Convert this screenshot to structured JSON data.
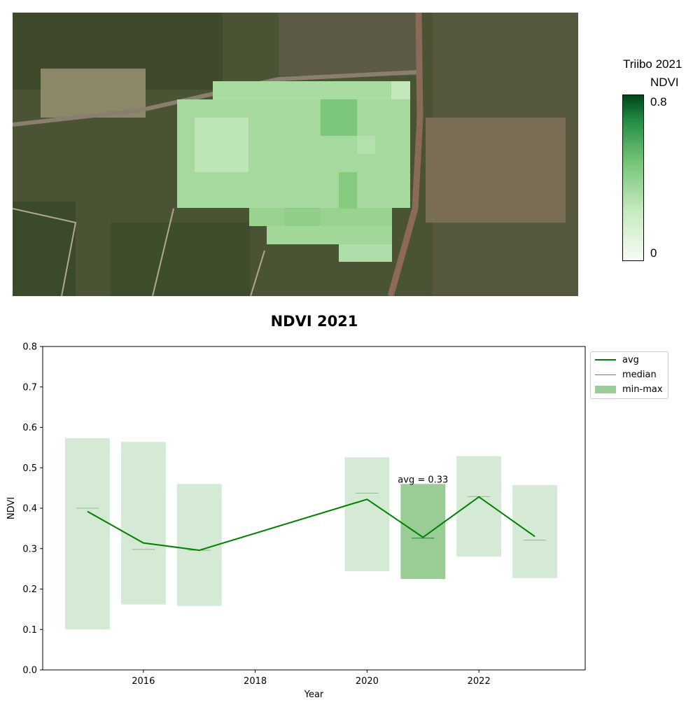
{
  "map": {
    "colorbar_title": "Triibo 2021",
    "colorbar_label": "NDVI",
    "colorbar_max": "0.8",
    "colorbar_min": "0"
  },
  "chart_data": {
    "type": "bar",
    "title": "NDVI 2021",
    "xlabel": "Year",
    "ylabel": "NDVI",
    "xlim": [
      2014.2,
      2023.9
    ],
    "ylim": [
      0.0,
      0.8
    ],
    "xticks": [
      2016,
      2018,
      2020,
      2022
    ],
    "yticks": [
      0.0,
      0.1,
      0.2,
      0.3,
      0.4,
      0.5,
      0.6,
      0.7,
      0.8
    ],
    "years": [
      2015,
      2016,
      2017,
      2020,
      2021,
      2022,
      2023
    ],
    "series": [
      {
        "name": "avg",
        "type": "line",
        "color": "#008000",
        "values": [
          0.392,
          0.314,
          0.296,
          0.422,
          0.328,
          0.428,
          0.33
        ]
      },
      {
        "name": "median",
        "type": "tick",
        "color": "#008000",
        "values": [
          0.4,
          0.298,
          0.296,
          0.437,
          0.326,
          0.429,
          0.321
        ]
      },
      {
        "name": "min-max",
        "type": "range",
        "color": "#9acd95",
        "min": [
          0.1,
          0.162,
          0.158,
          0.244,
          0.225,
          0.28,
          0.227
        ],
        "max": [
          0.573,
          0.564,
          0.46,
          0.526,
          0.46,
          0.529,
          0.457
        ],
        "highlight": 2021
      }
    ],
    "annotation": {
      "text": "avg = 0.33",
      "x": 2021,
      "y": 0.47
    },
    "legend_position": "outside-top-right"
  },
  "legend": {
    "avg": "avg",
    "median": "median",
    "minmax": "min-max"
  },
  "colors": {
    "avg": "#008000",
    "range": "#d5ead4",
    "range_highlight": "#9acd95"
  }
}
